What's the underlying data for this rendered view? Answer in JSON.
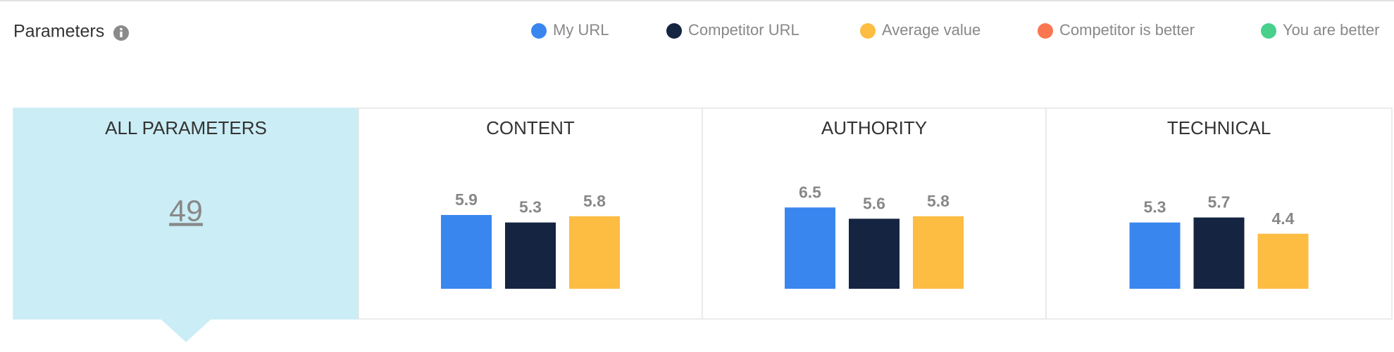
{
  "header": {
    "title": "Parameters"
  },
  "legend": [
    {
      "label": "My URL",
      "color": "#3a86ef"
    },
    {
      "label": "Competitor URL",
      "color": "#142441"
    },
    {
      "label": "Average value",
      "color": "#fdbc42"
    },
    {
      "label": "Competitor is better",
      "color": "#fa7650"
    },
    {
      "label": "You are better",
      "color": "#48d08c"
    }
  ],
  "panels": [
    {
      "title": "ALL PARAMETERS",
      "score": 49
    },
    {
      "title": "CONTENT",
      "values": [
        5.9,
        5.3,
        5.8
      ]
    },
    {
      "title": "AUTHORITY",
      "values": [
        6.5,
        5.6,
        5.8
      ]
    },
    {
      "title": "TECHNICAL",
      "values": [
        5.3,
        5.7,
        4.4
      ]
    }
  ]
}
